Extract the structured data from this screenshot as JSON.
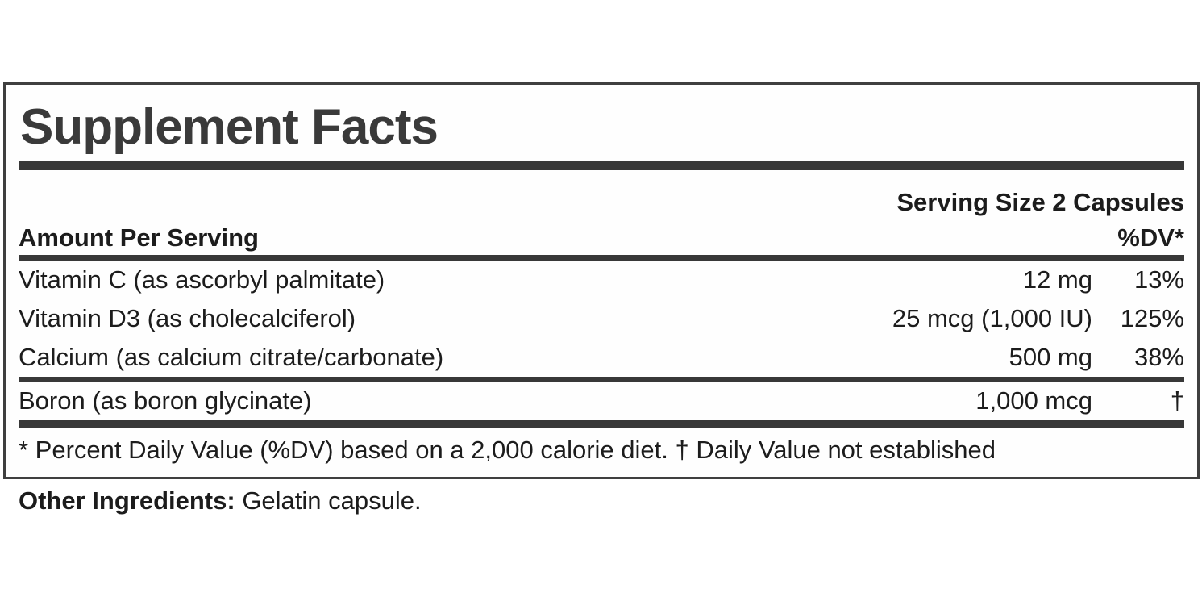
{
  "label": {
    "title": "Supplement Facts",
    "serving_size": "Serving Size 2 Capsules",
    "columns": {
      "amount_header": "Amount Per Serving",
      "dv_header": "%DV*"
    },
    "rows": [
      {
        "name": "Vitamin C (as ascorbyl palmitate)",
        "amount": "12 mg",
        "dv": "13%"
      },
      {
        "name": "Vitamin D3 (as cholecalciferol)",
        "amount": "25 mcg (1,000 IU)",
        "dv": "125%"
      },
      {
        "name": "Calcium (as calcium citrate/carbonate)",
        "amount": "500 mg",
        "dv": "38%"
      },
      {
        "name": "Boron (as boron glycinate)",
        "amount": "1,000 mcg",
        "dv": "†"
      }
    ],
    "footnote": "* Percent Daily Value (%DV) based on a 2,000 calorie diet. † Daily Value not established",
    "other_ingredients_label": "Other Ingredients:",
    "other_ingredients_value": " Gelatin capsule."
  },
  "colors": {
    "text": "#1c1c1c",
    "heading": "#3a3a3a",
    "bar": "#383838",
    "border": "#3f3f3f",
    "background": "#ffffff"
  }
}
